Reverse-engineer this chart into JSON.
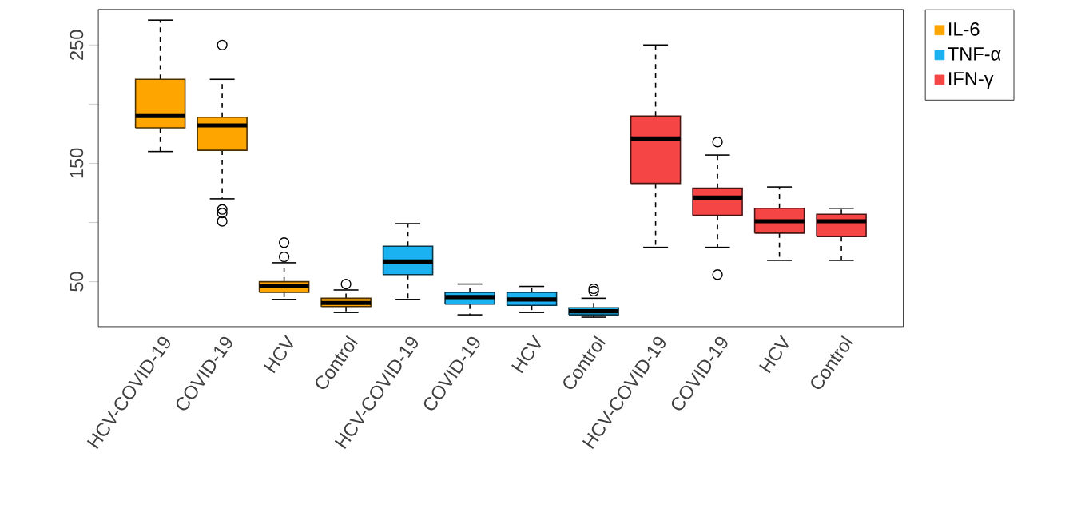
{
  "chart_data": {
    "type": "box",
    "categories": [
      "HCV-COVID-19",
      "COVID-19",
      "HCV",
      "Control",
      "HCV-COVID-19",
      "COVID-19",
      "HCV",
      "Control",
      "HCV-COVID-19",
      "COVID-19",
      "HCV",
      "Control"
    ],
    "ylim": [
      12,
      280
    ],
    "yticks": [
      50,
      {
        "value": 100,
        "label": null
      },
      150,
      {
        "value": 200,
        "label": null
      },
      250
    ],
    "legend": "right",
    "series": [
      {
        "name": "IL-6",
        "color": "#ffa500",
        "boxes": [
          {
            "low": 160,
            "q1": 180,
            "median": 190,
            "q3": 221,
            "high": 271
          },
          {
            "low": 120,
            "q1": 161,
            "median": 182,
            "q3": 189,
            "high": 221,
            "outliers": [
              250,
              111,
              108,
              101
            ]
          },
          {
            "low": 35,
            "q1": 41,
            "median": 46,
            "q3": 50,
            "high": 66,
            "outliers": [
              71,
              83
            ]
          },
          {
            "low": 24,
            "q1": 29,
            "median": 32,
            "q3": 36,
            "high": 43,
            "outliers": [
              48
            ]
          },
          null,
          null,
          null,
          null,
          null,
          null,
          null,
          null
        ]
      },
      {
        "name": "TNF-α",
        "color": "#1ab2f0",
        "boxes": [
          null,
          null,
          null,
          null,
          {
            "low": 35,
            "q1": 56,
            "median": 67,
            "q3": 80,
            "high": 99
          },
          {
            "low": 22,
            "q1": 31,
            "median": 37,
            "q3": 41,
            "high": 48
          },
          {
            "low": 24,
            "q1": 30,
            "median": 35,
            "q3": 41,
            "high": 46
          },
          {
            "low": 20,
            "q1": 22,
            "median": 25,
            "q3": 28,
            "high": 36,
            "outliers": [
              42,
              44
            ]
          },
          null,
          null,
          null,
          null
        ]
      },
      {
        "name": "IFN-γ",
        "color": "#f54545",
        "boxes": [
          null,
          null,
          null,
          null,
          null,
          null,
          null,
          null,
          {
            "low": 79,
            "q1": 133,
            "median": 171,
            "q3": 190,
            "high": 250
          },
          {
            "low": 79,
            "q1": 106,
            "median": 121,
            "q3": 129,
            "high": 157,
            "outliers": [
              168,
              56
            ]
          },
          {
            "low": 68,
            "q1": 91,
            "median": 101,
            "q3": 112,
            "high": 130
          },
          {
            "low": 68,
            "q1": 88,
            "median": 101,
            "q3": 107,
            "high": 112
          }
        ]
      }
    ]
  }
}
